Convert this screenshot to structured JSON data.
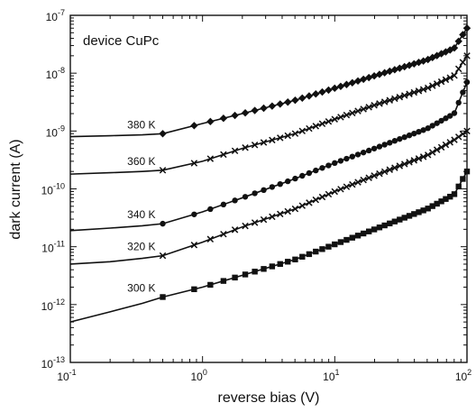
{
  "chart_data": {
    "type": "line",
    "title": "",
    "annotation": "device CuPc",
    "xlabel": "reverse bias (V)",
    "ylabel": "dark current (A)",
    "xscale": "log",
    "yscale": "log",
    "xlim": [
      0.1,
      100
    ],
    "ylim": [
      1e-13,
      1e-07
    ],
    "x_ticks": [
      {
        "value": 0.1,
        "mantissa": "10",
        "exp": "-1"
      },
      {
        "value": 1,
        "mantissa": "10",
        "exp": "0"
      },
      {
        "value": 10,
        "mantissa": "10",
        "exp": "1"
      },
      {
        "value": 100,
        "mantissa": "10",
        "exp": "2"
      }
    ],
    "y_ticks": [
      {
        "value": 1e-13,
        "mantissa": "10",
        "exp": "-13"
      },
      {
        "value": 1e-12,
        "mantissa": "10",
        "exp": "-12"
      },
      {
        "value": 1e-11,
        "mantissa": "10",
        "exp": "-11"
      },
      {
        "value": 1e-10,
        "mantissa": "10",
        "exp": "-10"
      },
      {
        "value": 1e-09,
        "mantissa": "10",
        "exp": "-9"
      },
      {
        "value": 1e-08,
        "mantissa": "10",
        "exp": "-8"
      },
      {
        "value": 1e-07,
        "mantissa": "10",
        "exp": "-7"
      }
    ],
    "grid": false,
    "legend": "none",
    "series": [
      {
        "name": "380 K",
        "marker": "diamond",
        "label_at_x": 0.5,
        "x": [
          0.1,
          0.2,
          0.35,
          0.5,
          1,
          2,
          5,
          10,
          20,
          50,
          80,
          100
        ],
        "y": [
          8e-10,
          8.3e-10,
          8.6e-10,
          9e-10,
          1.35e-09,
          2e-09,
          3.4e-09,
          5.5e-09,
          9e-09,
          1.7e-08,
          2.7e-08,
          6e-08
        ]
      },
      {
        "name": "360 K",
        "marker": "cross",
        "label_at_x": 0.5,
        "x": [
          0.1,
          0.2,
          0.35,
          0.5,
          1,
          2,
          5,
          10,
          20,
          50,
          80,
          100
        ],
        "y": [
          1.8e-10,
          1.9e-10,
          2e-10,
          2.1e-10,
          3e-10,
          5e-10,
          9e-10,
          1.6e-09,
          2.8e-09,
          5.5e-09,
          9e-09,
          2e-08
        ]
      },
      {
        "name": "340 K",
        "marker": "circle",
        "label_at_x": 0.5,
        "x": [
          0.1,
          0.2,
          0.35,
          0.5,
          1,
          2,
          5,
          10,
          20,
          50,
          80,
          100
        ],
        "y": [
          1.9e-11,
          2.1e-11,
          2.3e-11,
          2.5e-11,
          4e-11,
          7e-11,
          1.5e-10,
          2.8e-10,
          5e-10,
          1.1e-09,
          2e-09,
          7e-09
        ]
      },
      {
        "name": "320 K",
        "marker": "cross",
        "label_at_x": 0.5,
        "x": [
          0.1,
          0.2,
          0.35,
          0.5,
          1,
          2,
          5,
          10,
          20,
          50,
          80,
          100
        ],
        "y": [
          5e-12,
          5.5e-12,
          6.3e-12,
          7e-12,
          1.2e-11,
          2.2e-11,
          4.5e-11,
          9e-11,
          1.7e-10,
          3.8e-10,
          7e-10,
          1e-09
        ]
      },
      {
        "name": "300 K",
        "marker": "square",
        "label_at_x": 0.5,
        "x": [
          0.1,
          0.2,
          0.35,
          0.5,
          1,
          2,
          5,
          10,
          20,
          50,
          80,
          100
        ],
        "y": [
          5e-13,
          7.5e-13,
          1.05e-12,
          1.35e-12,
          2e-12,
          3.2e-12,
          6e-12,
          1.1e-11,
          2e-11,
          4.5e-11,
          8e-11,
          2e-10
        ]
      }
    ]
  }
}
